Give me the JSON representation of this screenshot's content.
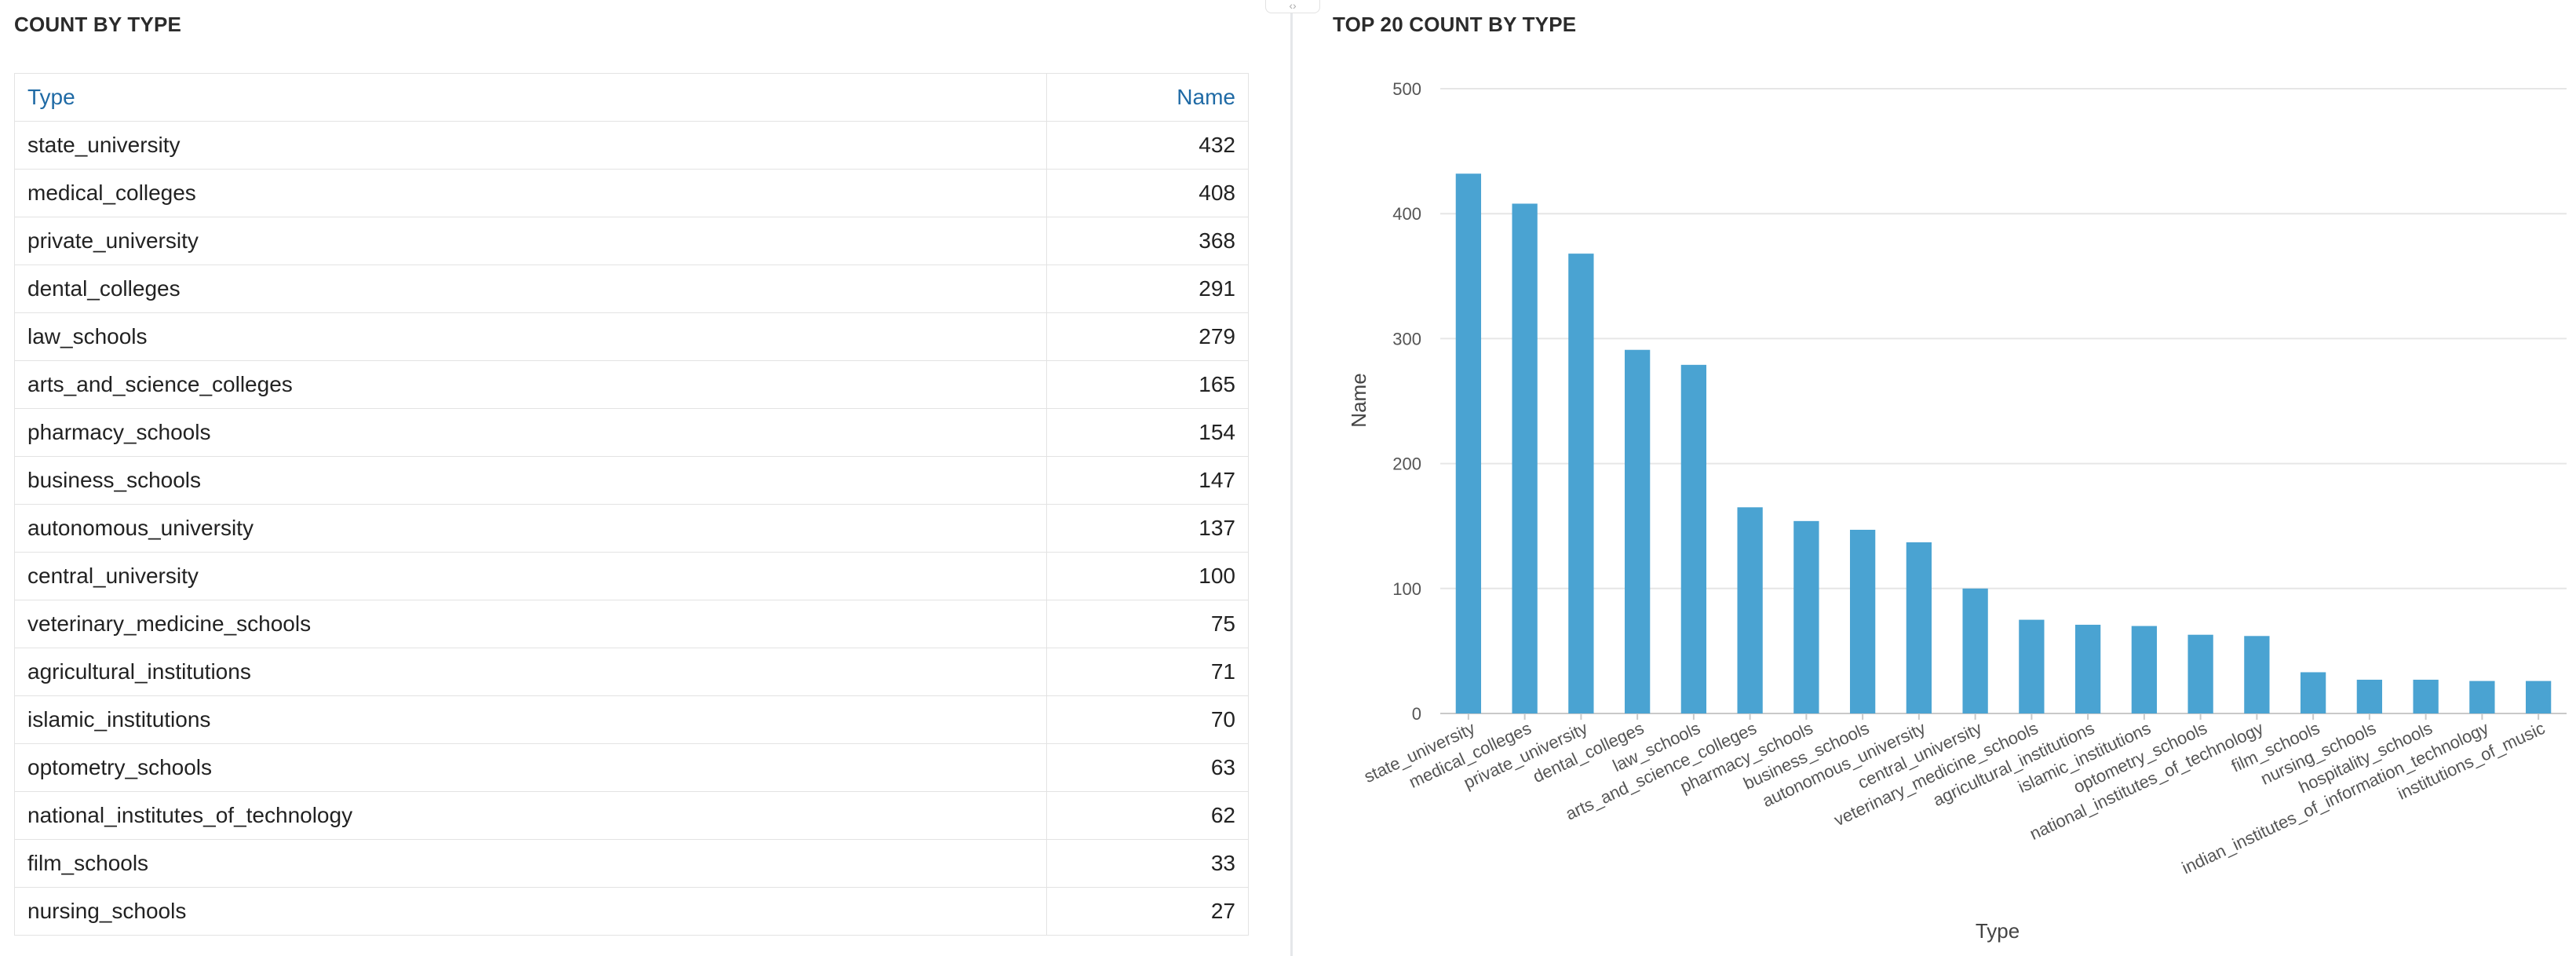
{
  "left_panel": {
    "title": "COUNT BY TYPE",
    "columns": [
      "Type",
      "Name"
    ],
    "rows": [
      {
        "type": "state_university",
        "name": "432"
      },
      {
        "type": "medical_colleges",
        "name": "408"
      },
      {
        "type": "private_university",
        "name": "368"
      },
      {
        "type": "dental_colleges",
        "name": "291"
      },
      {
        "type": "law_schools",
        "name": "279"
      },
      {
        "type": "arts_and_science_colleges",
        "name": "165"
      },
      {
        "type": "pharmacy_schools",
        "name": "154"
      },
      {
        "type": "business_schools",
        "name": "147"
      },
      {
        "type": "autonomous_university",
        "name": "137"
      },
      {
        "type": "central_university",
        "name": "100"
      },
      {
        "type": "veterinary_medicine_schools",
        "name": "75"
      },
      {
        "type": "agricultural_institutions",
        "name": "71"
      },
      {
        "type": "islamic_institutions",
        "name": "70"
      },
      {
        "type": "optometry_schools",
        "name": "63"
      },
      {
        "type": "national_institutes_of_technology",
        "name": "62"
      },
      {
        "type": "film_schools",
        "name": "33"
      },
      {
        "type": "nursing_schools",
        "name": "27"
      }
    ]
  },
  "right_panel": {
    "title": "TOP 20 COUNT BY TYPE"
  },
  "chart_data": {
    "type": "bar",
    "title": "TOP 20 COUNT BY TYPE",
    "xlabel": "Type",
    "ylabel": "Name",
    "ylim": [
      0,
      500
    ],
    "yticks": [
      0,
      100,
      200,
      300,
      400,
      500
    ],
    "grid": true,
    "bar_color": "#4aa3d2",
    "categories": [
      "state_university",
      "medical_colleges",
      "private_university",
      "dental_colleges",
      "law_schools",
      "arts_and_science_colleges",
      "pharmacy_schools",
      "business_schools",
      "autonomous_university",
      "central_university",
      "veterinary_medicine_schools",
      "agricultural_institutions",
      "islamic_institutions",
      "optometry_schools",
      "national_institutes_of_technology",
      "film_schools",
      "nursing_schools",
      "hospitality_schools",
      "indian_institutes_of_information_technology",
      "institutions_of_music"
    ],
    "values": [
      432,
      408,
      368,
      291,
      279,
      165,
      154,
      147,
      137,
      100,
      75,
      71,
      70,
      63,
      62,
      33,
      27,
      27,
      26,
      26
    ]
  }
}
